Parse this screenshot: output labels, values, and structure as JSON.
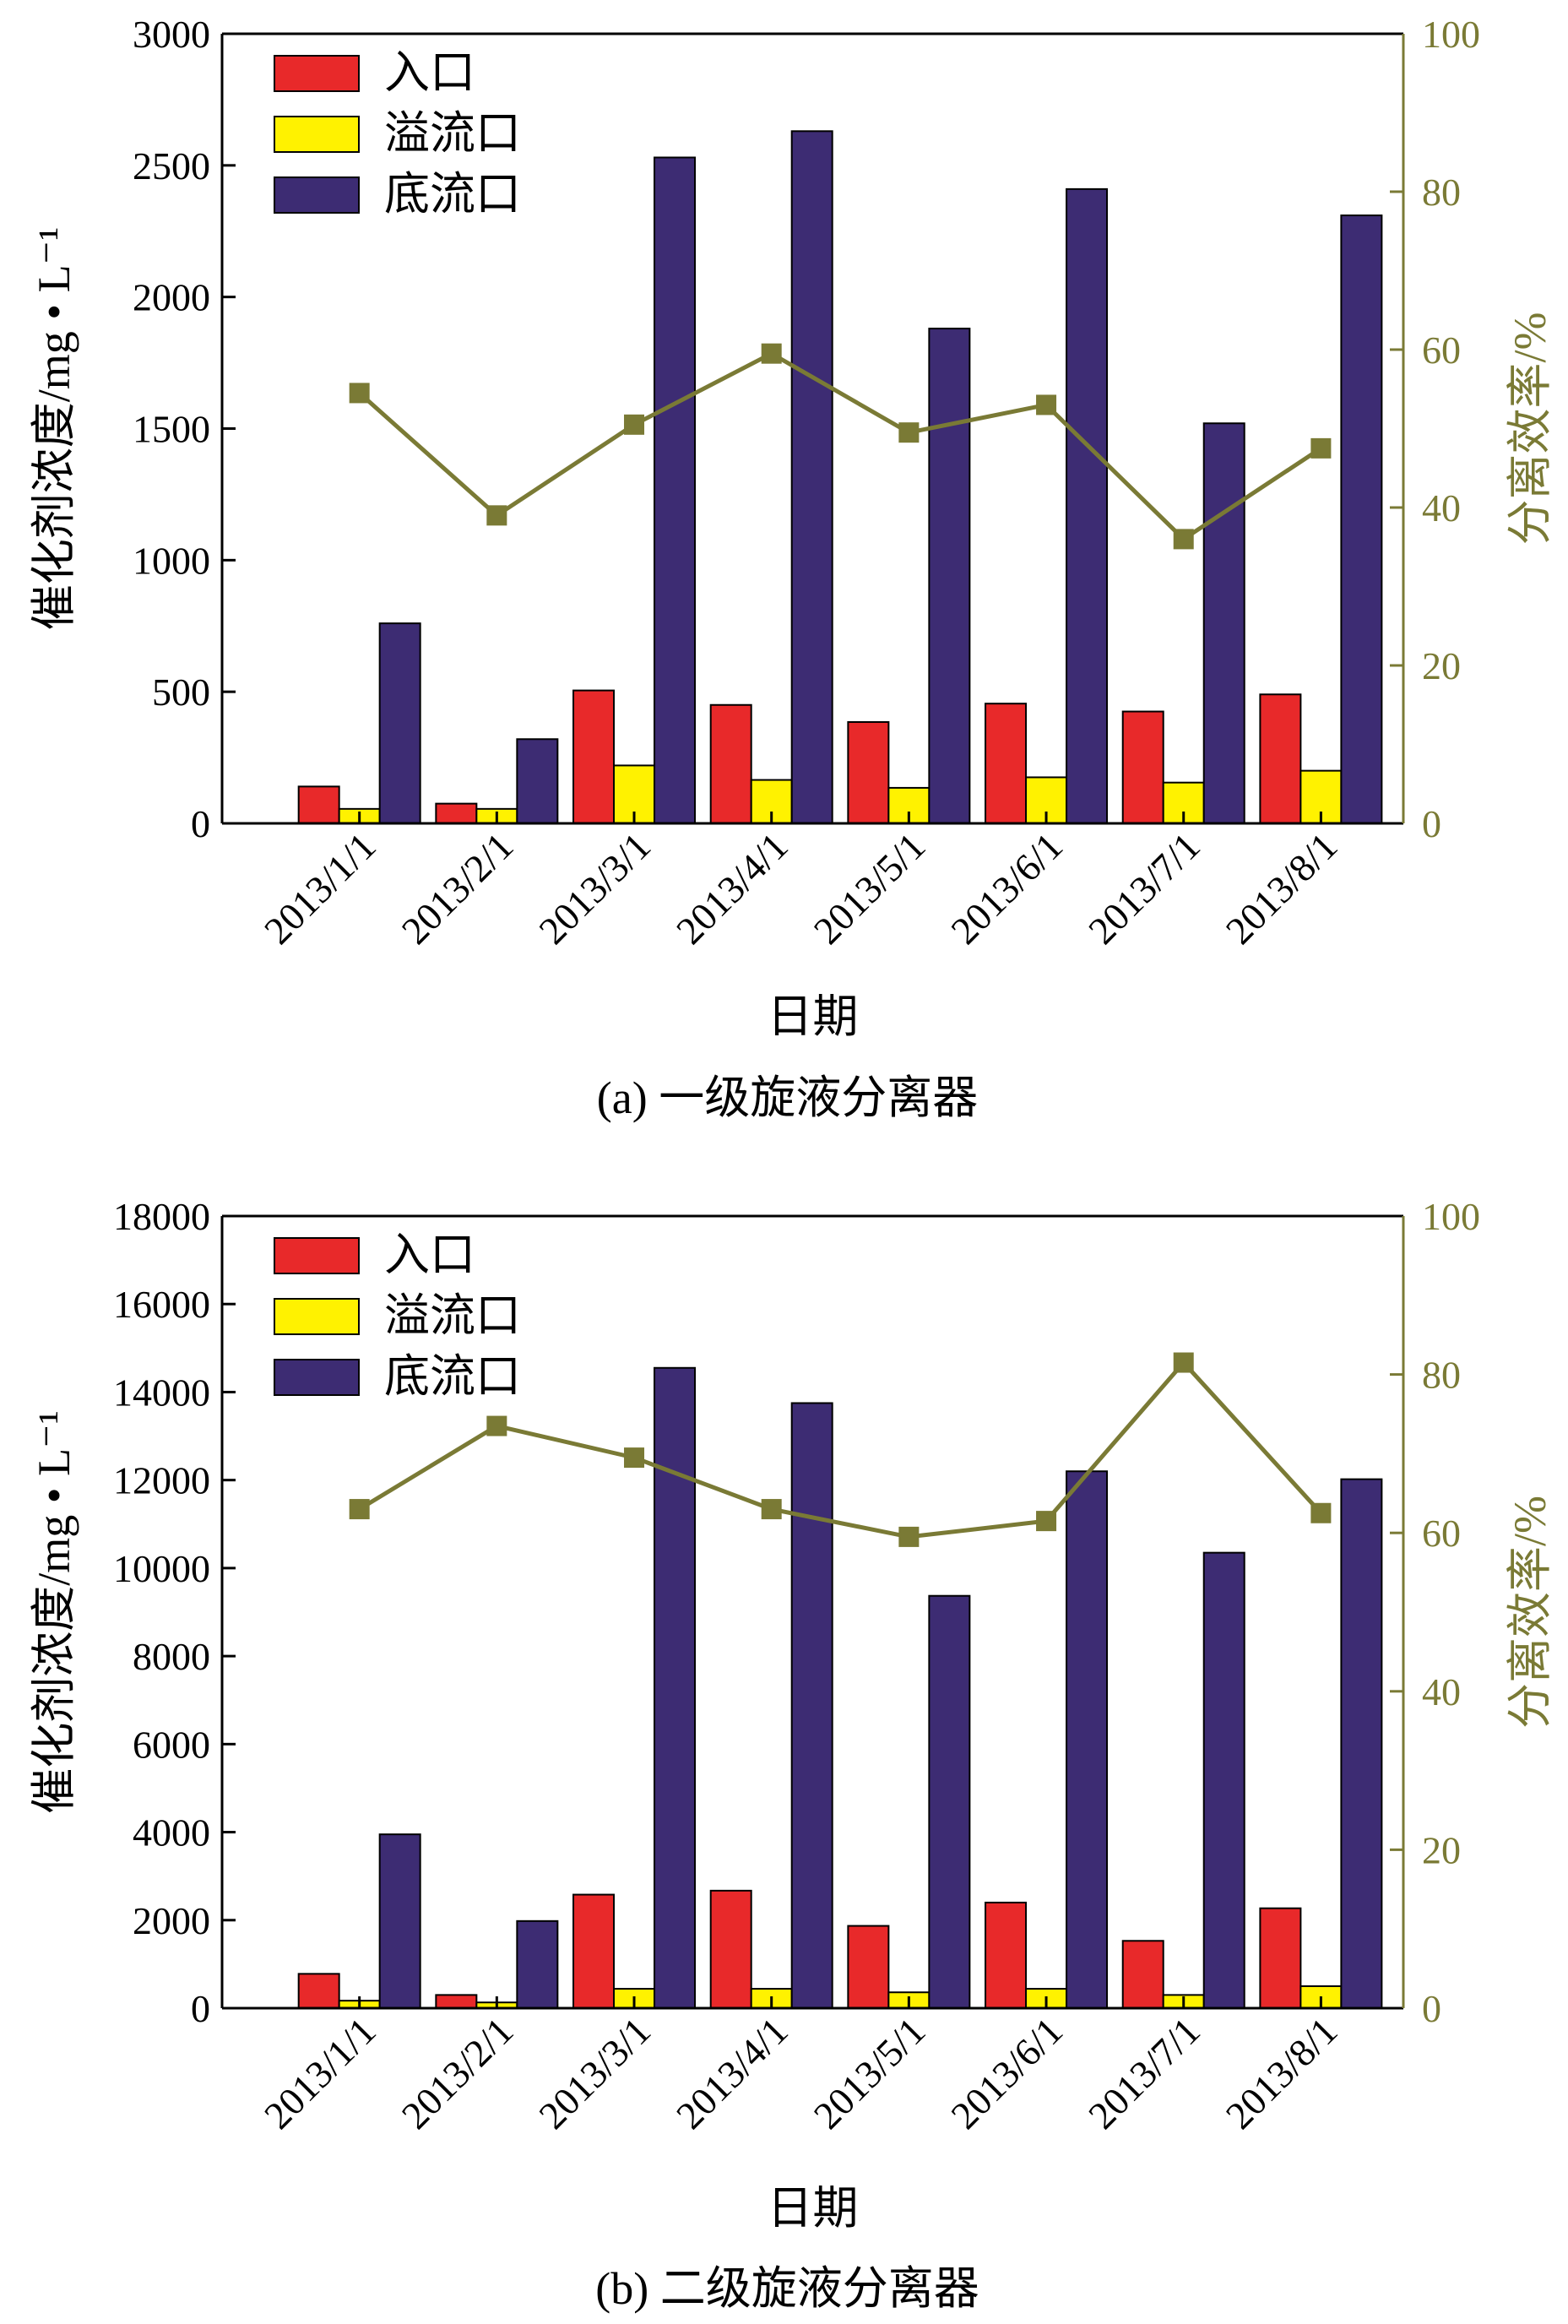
{
  "chart_data": [
    {
      "type": "bar",
      "caption": "(a) 一级旋液分离器",
      "xlabel": "日期",
      "ylabel": "催化剂浓度/mg • L⁻¹",
      "y2label": "分离效率/%",
      "ylim": [
        0,
        3000
      ],
      "y2lim": [
        0,
        100
      ],
      "yticks": [
        "0",
        "500",
        "1000",
        "1500",
        "2000",
        "2500",
        "3000"
      ],
      "y2ticks": [
        "0",
        "20",
        "40",
        "60",
        "80",
        "100"
      ],
      "categories": [
        "2013/1/1",
        "2013/2/1",
        "2013/3/1",
        "2013/4/1",
        "2013/5/1",
        "2013/6/1",
        "2013/7/1",
        "2013/8/1"
      ],
      "legend_position": "top-left",
      "series": [
        {
          "name": "入口",
          "kind": "bar",
          "axis": "left",
          "color": "#e8292a",
          "values": [
            140,
            75,
            505,
            450,
            385,
            455,
            425,
            490
          ]
        },
        {
          "name": "溢流口",
          "kind": "bar",
          "axis": "left",
          "color": "#fff200",
          "values": [
            55,
            55,
            220,
            165,
            135,
            175,
            155,
            200
          ]
        },
        {
          "name": "底流口",
          "kind": "bar",
          "axis": "left",
          "color": "#3d2c73",
          "values": [
            760,
            320,
            2530,
            2630,
            1880,
            2410,
            1520,
            2310
          ]
        },
        {
          "kind": "line",
          "axis": "right",
          "color": "#7a7a35",
          "values": [
            54.5,
            39,
            50.5,
            59.5,
            49.5,
            53,
            36,
            47.5
          ]
        }
      ]
    },
    {
      "type": "bar",
      "caption": "(b) 二级旋液分离器",
      "xlabel": "日期",
      "ylabel": "催化剂浓度/mg • L⁻¹",
      "y2label": "分离效率/%",
      "ylim": [
        0,
        18000
      ],
      "y2lim": [
        0,
        100
      ],
      "yticks": [
        "0",
        "2000",
        "4000",
        "6000",
        "8000",
        "10000",
        "12000",
        "14000",
        "16000",
        "18000"
      ],
      "y2ticks": [
        "0",
        "20",
        "40",
        "60",
        "80",
        "100"
      ],
      "categories": [
        "2013/1/1",
        "2013/2/1",
        "2013/3/1",
        "2013/4/1",
        "2013/5/1",
        "2013/6/1",
        "2013/7/1",
        "2013/8/1"
      ],
      "legend_position": "top-left",
      "series": [
        {
          "name": "入口",
          "kind": "bar",
          "axis": "left",
          "color": "#e8292a",
          "values": [
            780,
            300,
            2580,
            2670,
            1870,
            2400,
            1530,
            2270
          ]
        },
        {
          "name": "溢流口",
          "kind": "bar",
          "axis": "left",
          "color": "#fff200",
          "values": [
            170,
            130,
            440,
            440,
            360,
            440,
            300,
            500
          ]
        },
        {
          "name": "底流口",
          "kind": "bar",
          "axis": "left",
          "color": "#3d2c73",
          "values": [
            3950,
            1980,
            14550,
            13750,
            9370,
            12200,
            10350,
            12020
          ]
        },
        {
          "kind": "line",
          "axis": "right",
          "color": "#7a7a35",
          "values": [
            63,
            73.5,
            69.5,
            63,
            59.5,
            61.5,
            81.5,
            62.5
          ]
        }
      ]
    }
  ]
}
